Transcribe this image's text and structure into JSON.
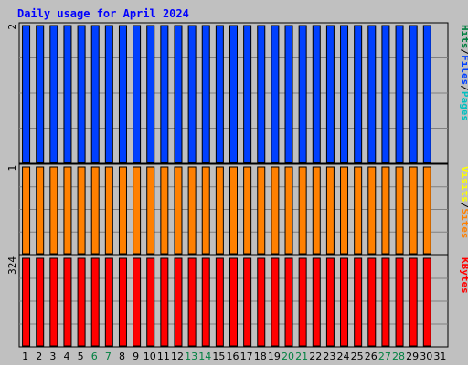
{
  "chart_data": {
    "type": "bar",
    "title": "Daily usage for April 2024",
    "colors": {
      "background": "#c0c0c0",
      "panel": "#c0c0c0",
      "grid": "#808080",
      "title": "#0000ff",
      "hits": "#008040",
      "files": "#0040ff",
      "pages": "#00c0c0",
      "visits": "#ffff00",
      "sites": "#ff8000",
      "kbytes": "#ff0000",
      "weekday_label": "#000000",
      "weekend_label": "#008040"
    },
    "days": [
      "1",
      "2",
      "3",
      "4",
      "5",
      "6",
      "7",
      "8",
      "9",
      "10",
      "11",
      "12",
      "13",
      "14",
      "15",
      "16",
      "17",
      "18",
      "19",
      "20",
      "21",
      "22",
      "23",
      "24",
      "25",
      "26",
      "27",
      "28",
      "29",
      "30",
      "31"
    ],
    "weekend_days": [
      6,
      7,
      13,
      14,
      20,
      21,
      27,
      28
    ],
    "panels": [
      {
        "id": "top",
        "max_label": "2",
        "ymax": 2,
        "legend": [
          {
            "text": "Hits",
            "color_key": "hits"
          },
          {
            "text": "/",
            "color_key": "weekday_label"
          },
          {
            "text": "Files",
            "color_key": "files"
          },
          {
            "text": "/",
            "color_key": "weekday_label"
          },
          {
            "text": "Pages",
            "color_key": "pages"
          }
        ],
        "series": [
          {
            "name": "Files",
            "color_key": "files",
            "values": [
              2,
              2,
              2,
              2,
              2,
              2,
              2,
              2,
              2,
              2,
              2,
              2,
              2,
              2,
              2,
              2,
              2,
              2,
              2,
              2,
              2,
              2,
              2,
              2,
              2,
              2,
              2,
              2,
              2,
              2,
              0
            ]
          }
        ]
      },
      {
        "id": "middle",
        "max_label": "1",
        "ymax": 1,
        "legend": [
          {
            "text": "Visits",
            "color_key": "visits"
          },
          {
            "text": "/",
            "color_key": "weekday_label"
          },
          {
            "text": "Sites",
            "color_key": "sites"
          }
        ],
        "series": [
          {
            "name": "Sites",
            "color_key": "sites",
            "values": [
              1,
              1,
              1,
              1,
              1,
              1,
              1,
              1,
              1,
              1,
              1,
              1,
              1,
              1,
              1,
              1,
              1,
              1,
              1,
              1,
              1,
              1,
              1,
              1,
              1,
              1,
              1,
              1,
              1,
              1,
              0
            ]
          }
        ]
      },
      {
        "id": "bottom",
        "max_label": "324",
        "ymax": 324,
        "legend": [
          {
            "text": "KBytes",
            "color_key": "kbytes"
          }
        ],
        "series": [
          {
            "name": "KBytes",
            "color_key": "kbytes",
            "values": [
              324,
              324,
              324,
              324,
              324,
              324,
              324,
              324,
              324,
              324,
              324,
              324,
              324,
              324,
              324,
              324,
              324,
              324,
              324,
              324,
              324,
              324,
              324,
              324,
              324,
              324,
              324,
              324,
              324,
              324,
              0
            ]
          }
        ]
      }
    ]
  }
}
